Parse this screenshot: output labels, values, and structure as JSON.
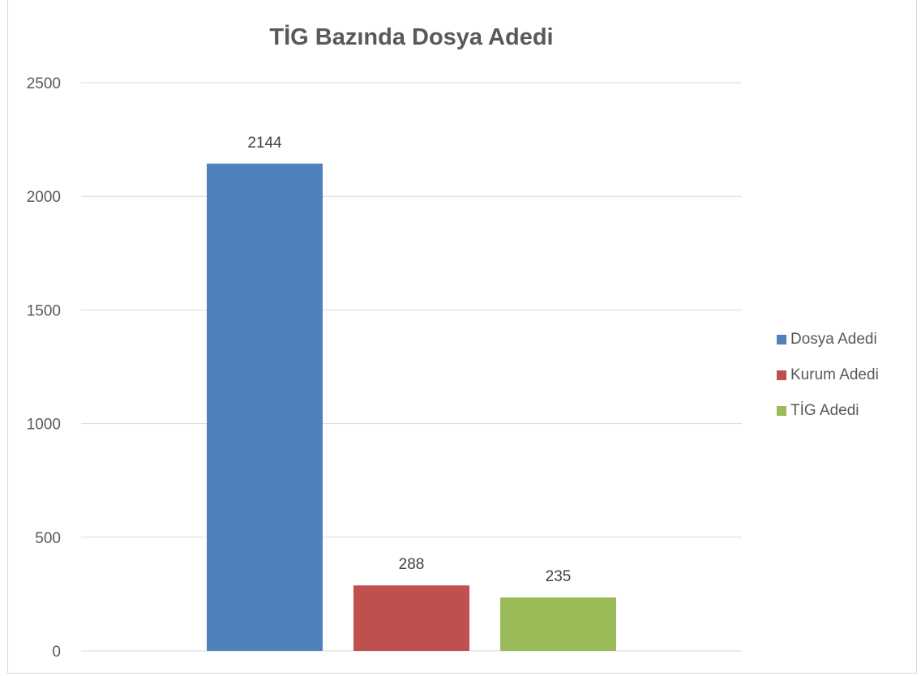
{
  "chart_data": {
    "type": "bar",
    "title": "TİG Bazında Dosya Adedi",
    "xlabel": "",
    "ylabel": "",
    "ylim": [
      0,
      2500
    ],
    "yticks": [
      0,
      500,
      1000,
      1500,
      2000,
      2500
    ],
    "grid": true,
    "legend_position": "right",
    "categories": [
      ""
    ],
    "series": [
      {
        "name": "Dosya Adedi",
        "values": [
          2144
        ],
        "color": "#4f81bd"
      },
      {
        "name": "Kurum Adedi",
        "values": [
          288
        ],
        "color": "#c0504d"
      },
      {
        "name": "TİG Adedi",
        "values": [
          235
        ],
        "color": "#9bbb59"
      }
    ]
  }
}
